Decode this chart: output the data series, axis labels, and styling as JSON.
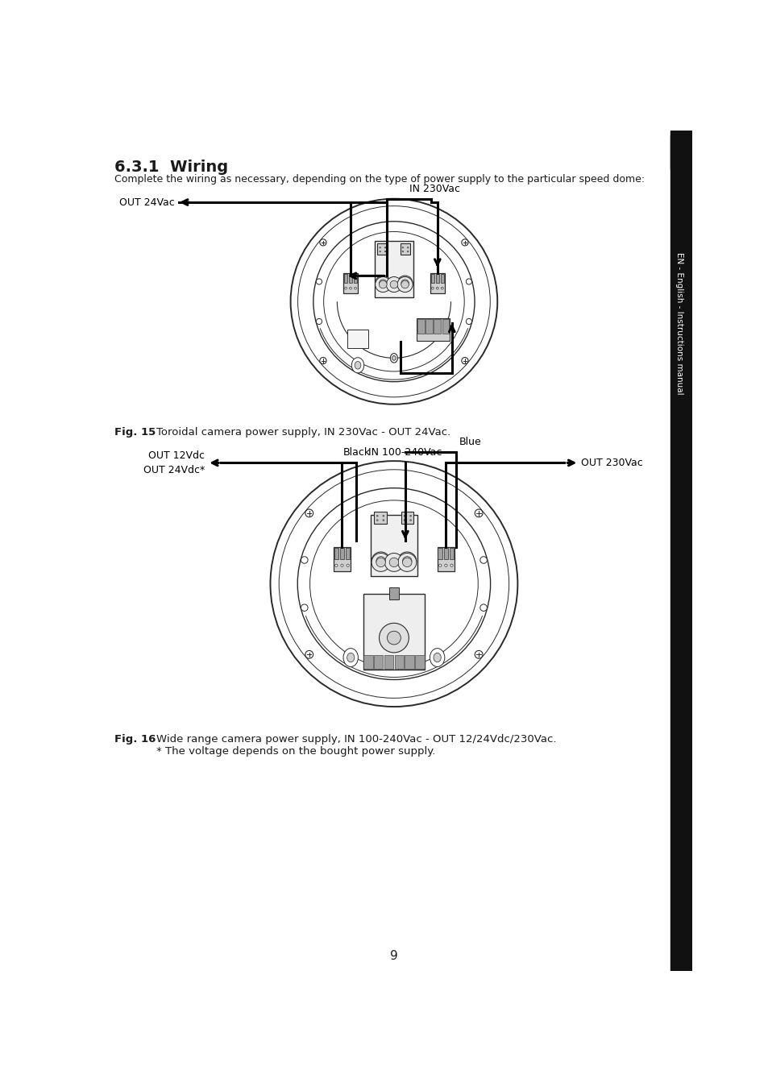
{
  "title": "6.3.1  Wiring",
  "subtitle": "Complete the wiring as necessary, depending on the type of power supply to the particular speed dome:",
  "sidebar_text": "EN - English - Instructions manual",
  "page_number": "9",
  "fig15_bold": "Fig. 15",
  "fig15_text": "    Toroidal camera power supply, IN 230Vac - OUT 24Vac.",
  "fig16_bold": "Fig. 16",
  "fig16_text": "    Wide range camera power supply, IN 100-240Vac - OUT 12/24Vdc/230Vac.",
  "fig16_text2": "    * The voltage depends on the bought power supply.",
  "label_out24vac": "OUT 24Vac",
  "label_in230vac": "IN 230Vac",
  "label_out12vdc": "OUT 12Vdc",
  "label_out24vdc": "OUT 24Vdc*",
  "label_black": "Black",
  "label_in100": "IN 100-240Vac",
  "label_blue": "Blue",
  "label_out230vac": "OUT 230Vac",
  "bg_color": "#ffffff",
  "text_color": "#1a1a1a",
  "wire_color": "#000000",
  "draw_color": "#2a2a2a",
  "light_gray": "#d0d0d0",
  "med_gray": "#a0a0a0",
  "dark_gray": "#505050"
}
